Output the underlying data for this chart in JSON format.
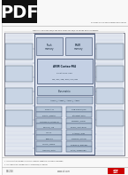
{
  "bg_color": "#ffffff",
  "pdf_badge_color": "#1a1a1a",
  "pdf_text_color": "#ffffff",
  "page_color": "#f0f0f0",
  "footer_logo_color": "#cc0000",
  "diag_outer_color": "#e8eaf0",
  "diag_border_color": "#555566",
  "chip_color": "#dde2ee",
  "chip_border": "#333355",
  "block_color": "#b8c8d8",
  "block_border": "#334466",
  "left_pin_color": "#ccd4e0",
  "right_pin_color": "#ccd4e0",
  "line_color": "#667788",
  "text_color": "#222233",
  "gray_line": "#aaaaaa"
}
